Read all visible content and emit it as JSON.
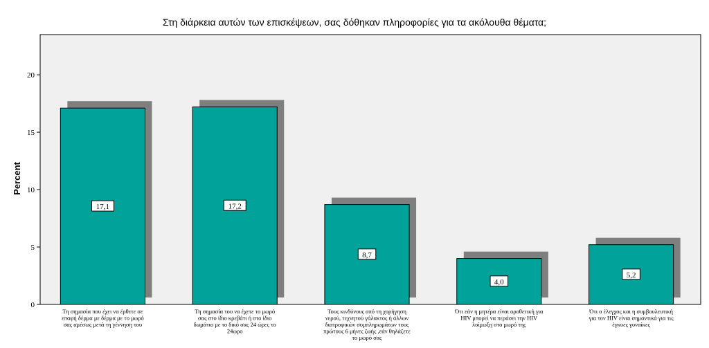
{
  "chart_data": {
    "type": "bar",
    "title": "Στη διάρκεια αυτών των επισκέψεων, σας δόθηκαν πληροφορίες για τα ακόλουθα θέματα;",
    "ylabel": "Percent",
    "xlabel": "",
    "ylim": [
      0,
      23.5
    ],
    "yticks": [
      0,
      5,
      10,
      15,
      20
    ],
    "categories": [
      "Τη σημασία που έχει να έρθετε σε επαφή δέρμα με δέρμα με το μωρό σας αμέσως μετά τη γέννηση του",
      "Τη σημασία του να έχετε το μωρό σας στο ίδιο κρεβάτι ή στο ίδιο δωμάτιο με το δικό σας 24 ώρες το 24ωρο",
      "Τους κινδύνους από τη χορήγηση νερού, τεχνητού γάλακτος ή άλλων διατροφικών συμπληρωμάτων τους πρώτους 6 μήνες ζωής ,εάν θηλάζετε το μωρό σας",
      "Ότι εάν η μητέρα είναι οροθετική για HIV μπορεί να περάσει την HIV λοίμωξη στο μωρό της",
      "Ότι ο έλεγχος και η συμβουλευτική για τον HIV είναι σημαντικά για τις έγκυες γυναίκες"
    ],
    "category_lines": [
      [
        "Τη σημασία που έχει να έρθετε σε",
        "επαφή δέρμα με δέρμα με το μωρό",
        "σας αμέσως μετά τη γέννηση του"
      ],
      [
        "Τη σημασία του να έχετε το μωρό",
        "σας στο ίδιο κρεβάτι ή στο ίδιο",
        "δωμάτιο με το δικό σας 24 ώρες το",
        "24ωρο"
      ],
      [
        "Τους κινδύνους από τη χορήγηση",
        "νερού, τεχνητού γάλακτος ή άλλων",
        "διατροφικών συμπληρωμάτων τους",
        "πρώτους 6 μήνες ζωής ,εάν θηλάζετε",
        "το μωρό σας"
      ],
      [
        "Ότι εάν η μητέρα είναι οροθετική για",
        "HIV μπορεί να περάσει την HIV",
        "λοίμωξη στο μωρό της"
      ],
      [
        "Ότι ο έλεγχος και η συμβουλευτική",
        "για τον HIV είναι σημαντικά για τις",
        "έγκυες γυναίκες"
      ]
    ],
    "values": [
      17.1,
      17.2,
      8.7,
      4.0,
      5.2
    ],
    "data_labels": [
      "17,1",
      "17,2",
      "8,7",
      "4,0",
      "5,2"
    ],
    "grid": false,
    "colors": {
      "bar": "#00a29a",
      "shadow": "#7f7f7f",
      "plot_bg": "#f0f0f0",
      "label_box": "#ffffff"
    }
  }
}
